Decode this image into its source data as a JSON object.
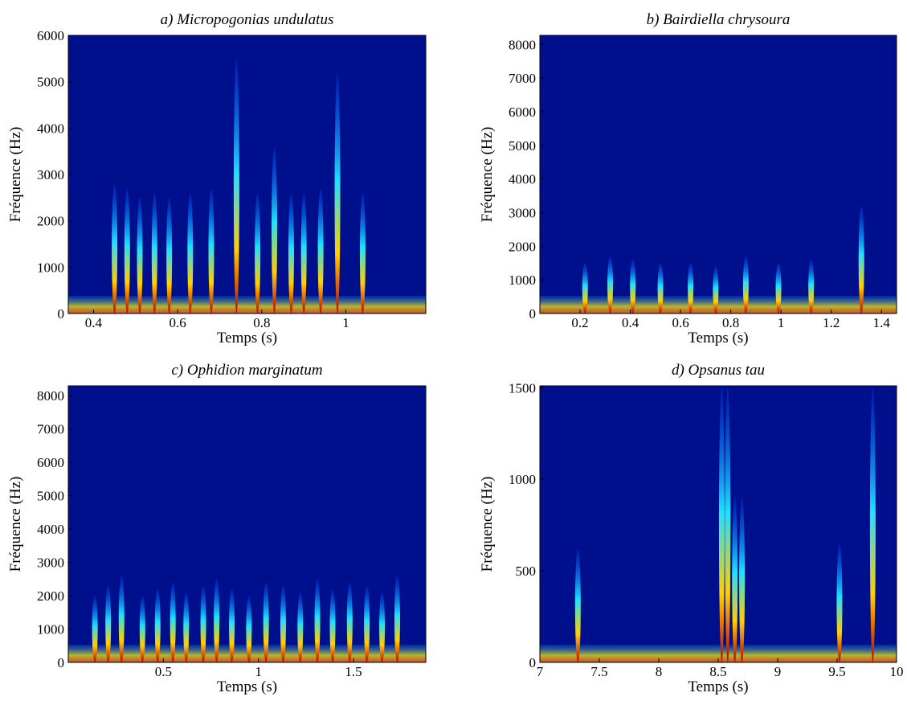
{
  "chart_data": [
    {
      "type": "spectrogram",
      "title": "a) Micropogonias undulatus",
      "x_label": "Temps (s)",
      "y_label": "Fréquence (Hz)",
      "xlim": [
        0.34,
        1.19
      ],
      "xticks": [
        0.4,
        0.6,
        0.8,
        1
      ],
      "ylim": [
        0,
        6000
      ],
      "yticks": [
        0,
        1000,
        2000,
        3000,
        4000,
        5000,
        6000
      ],
      "x": [
        0.45,
        0.48,
        0.51,
        0.545,
        0.58,
        0.63,
        0.68,
        0.74,
        0.79,
        0.83,
        0.87,
        0.9,
        0.94,
        0.98,
        1.04
      ],
      "values": [
        2800,
        2700,
        2500,
        2600,
        2500,
        2600,
        2700,
        5500,
        2600,
        3600,
        2600,
        2600,
        2700,
        5200,
        2600
      ]
    },
    {
      "type": "spectrogram",
      "title": "b) Bairdiella chrysoura",
      "x_label": "Temps (s)",
      "y_label": "Fréquence (Hz)",
      "xlim": [
        0.04,
        1.46
      ],
      "xticks": [
        0.2,
        0.4,
        0.6,
        0.8,
        1,
        1.2,
        1.4
      ],
      "ylim": [
        0,
        8270
      ],
      "yticks": [
        0,
        1000,
        2000,
        3000,
        4000,
        5000,
        6000,
        7000,
        8000
      ],
      "x": [
        0.22,
        0.32,
        0.41,
        0.52,
        0.64,
        0.74,
        0.86,
        0.99,
        1.12,
        1.32
      ],
      "values": [
        1500,
        1700,
        1600,
        1500,
        1500,
        1400,
        1700,
        1500,
        1600,
        3200
      ]
    },
    {
      "type": "spectrogram",
      "title": "c)  Ophidion marginatum",
      "x_label": "Temps (s)",
      "y_label": "Fréquence (Hz)",
      "xlim": [
        0,
        1.88
      ],
      "xticks": [
        0.5,
        1,
        1.5
      ],
      "ylim": [
        0,
        8290
      ],
      "yticks": [
        0,
        1000,
        2000,
        3000,
        4000,
        5000,
        6000,
        7000,
        8000
      ],
      "x": [
        0.14,
        0.21,
        0.28,
        0.39,
        0.47,
        0.55,
        0.62,
        0.71,
        0.78,
        0.86,
        0.95,
        1.04,
        1.13,
        1.22,
        1.31,
        1.39,
        1.48,
        1.57,
        1.65,
        1.73
      ],
      "values": [
        2000,
        2300,
        2600,
        2000,
        2200,
        2400,
        2100,
        2300,
        2500,
        2200,
        2000,
        2400,
        2300,
        2100,
        2500,
        2200,
        2400,
        2300,
        2100,
        2600
      ]
    },
    {
      "type": "spectrogram",
      "title": "d) Opsanus tau",
      "x_label": "Temps (s)",
      "y_label": "Fréquence (Hz)",
      "xlim": [
        7,
        10
      ],
      "xticks": [
        7,
        7.5,
        8,
        8.5,
        9,
        9.5,
        10
      ],
      "ylim": [
        0,
        1510
      ],
      "yticks": [
        0,
        500,
        1000,
        1500
      ],
      "x": [
        7.32,
        8.53,
        8.58,
        8.64,
        8.7,
        9.52,
        9.8
      ],
      "values": [
        620,
        1500,
        1500,
        900,
        900,
        650,
        1500
      ]
    }
  ]
}
